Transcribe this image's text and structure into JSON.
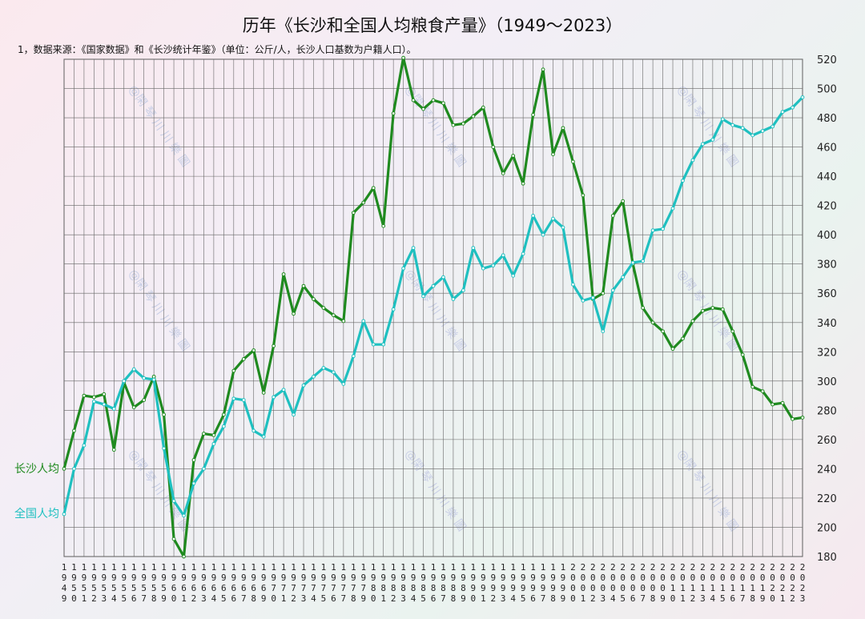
{
  "chart_data": {
    "type": "line",
    "title": "历年《长沙和全国人均粮食产量》（1949～2023）",
    "subtitle": "1，数据来源：《国家数据》和《长沙统计年鉴》（单位：公斤/人，长沙人口基数为户籍人口）。",
    "xlabel": "",
    "ylabel": "",
    "ylim": [
      180,
      520
    ],
    "yticks": [
      180,
      200,
      220,
      240,
      260,
      280,
      300,
      320,
      340,
      360,
      380,
      400,
      420,
      440,
      460,
      480,
      500,
      520
    ],
    "grid": true,
    "legend_placement": "left",
    "x": [
      1949,
      1950,
      1951,
      1952,
      1953,
      1954,
      1955,
      1956,
      1957,
      1958,
      1959,
      1960,
      1961,
      1962,
      1963,
      1964,
      1965,
      1966,
      1967,
      1968,
      1969,
      1970,
      1971,
      1972,
      1973,
      1974,
      1975,
      1976,
      1977,
      1978,
      1979,
      1980,
      1981,
      1982,
      1983,
      1984,
      1985,
      1986,
      1987,
      1988,
      1989,
      1990,
      1991,
      1992,
      1993,
      1994,
      1995,
      1996,
      1997,
      1998,
      1999,
      2000,
      2001,
      2002,
      2003,
      2004,
      2005,
      2006,
      2007,
      2008,
      2009,
      2010,
      2011,
      2012,
      2013,
      2014,
      2015,
      2016,
      2017,
      2018,
      2019,
      2020,
      2021,
      2022,
      2023
    ],
    "series": [
      {
        "name": "长沙人均",
        "color": "#1f8a1f",
        "values": [
          240,
          266,
          290,
          289,
          291,
          253,
          299,
          282,
          287,
          303,
          277,
          192,
          180,
          246,
          264,
          263,
          277,
          307,
          315,
          321,
          292,
          324,
          373,
          346,
          365,
          356,
          350,
          345,
          341,
          415,
          422,
          432,
          406,
          483,
          521,
          492,
          486,
          492,
          490,
          475,
          476,
          481,
          487,
          460,
          442,
          454,
          435,
          482,
          513,
          455,
          473,
          450,
          427,
          356,
          360,
          413,
          423,
          380,
          350,
          340,
          334,
          322,
          329,
          341,
          348,
          350,
          349,
          334,
          318,
          296,
          293,
          284,
          285,
          274,
          275
        ]
      },
      {
        "name": "全国人均",
        "color": "#1fc0c0",
        "values": [
          209,
          240,
          256,
          286,
          284,
          281,
          300,
          308,
          302,
          301,
          254,
          218,
          208,
          230,
          240,
          257,
          269,
          288,
          287,
          266,
          262,
          289,
          294,
          277,
          297,
          303,
          309,
          306,
          298,
          317,
          341,
          325,
          325,
          349,
          377,
          391,
          358,
          365,
          371,
          356,
          362,
          391,
          377,
          379,
          386,
          372,
          387,
          413,
          400,
          411,
          405,
          366,
          355,
          357,
          334,
          362,
          371,
          381,
          382,
          403,
          404,
          418,
          437,
          451,
          462,
          465,
          479,
          475,
          473,
          468,
          471,
          474,
          484,
          487,
          494
        ]
      }
    ]
  },
  "watermark": "@閑 琴 川 川 樂 圖"
}
